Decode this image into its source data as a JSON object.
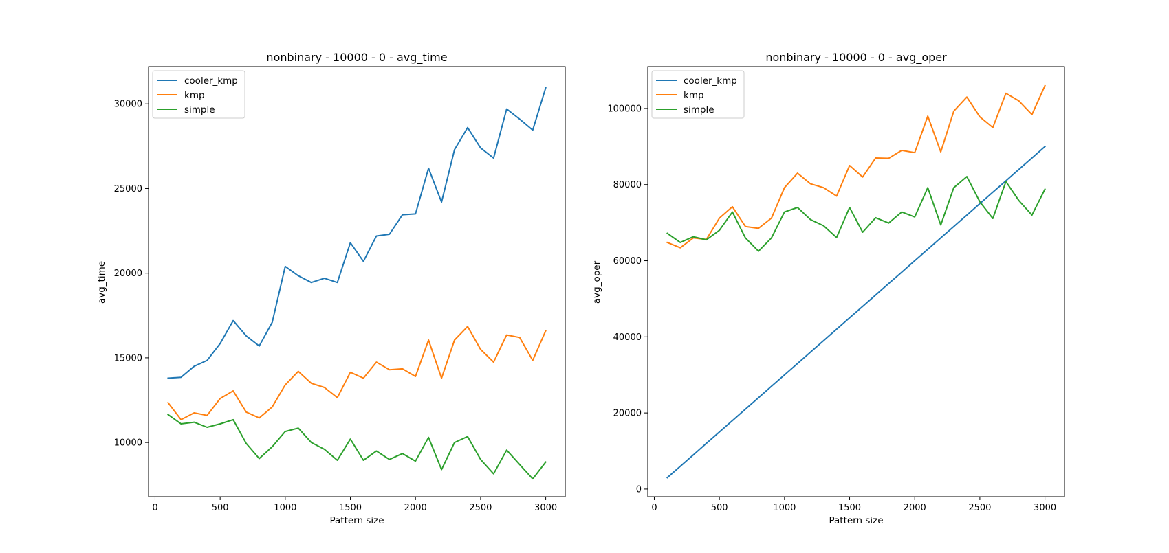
{
  "chart_data": [
    {
      "type": "line",
      "title": "nonbinary - 10000 - 0 - avg_time",
      "xlabel": "Pattern size",
      "ylabel": "avg_time",
      "xlim": [
        -50,
        3150
      ],
      "ylim": [
        6800,
        32200
      ],
      "xticks": [
        0,
        500,
        1000,
        1500,
        2000,
        2500,
        3000
      ],
      "yticks": [
        10000,
        15000,
        20000,
        25000,
        30000
      ],
      "grid": false,
      "legend": "upper left",
      "x": [
        100,
        200,
        300,
        400,
        500,
        600,
        700,
        800,
        900,
        1000,
        1100,
        1200,
        1300,
        1400,
        1500,
        1600,
        1700,
        1800,
        1900,
        2000,
        2100,
        2200,
        2300,
        2400,
        2500,
        2600,
        2700,
        2800,
        2900,
        3000
      ],
      "series": [
        {
          "name": "cooler_kmp",
          "color": "#1f77b4",
          "values": [
            13800,
            13850,
            14500,
            14850,
            15850,
            17200,
            16300,
            15700,
            17100,
            20400,
            19850,
            19450,
            19700,
            19450,
            21800,
            20700,
            22200,
            22300,
            23450,
            23500,
            26200,
            24200,
            27300,
            28600,
            27400,
            26800,
            29700,
            29100,
            28450,
            30950
          ]
        },
        {
          "name": "kmp",
          "color": "#ff7f0e",
          "values": [
            12350,
            11350,
            11750,
            11600,
            12600,
            13050,
            11800,
            11450,
            12100,
            13400,
            14200,
            13500,
            13250,
            12650,
            14150,
            13800,
            14750,
            14300,
            14350,
            13900,
            16050,
            13800,
            16050,
            16850,
            15500,
            14750,
            16350,
            16200,
            14850,
            16600
          ]
        },
        {
          "name": "simple",
          "color": "#2ca02c",
          "values": [
            11650,
            11100,
            11200,
            10900,
            11100,
            11350,
            9950,
            9050,
            9750,
            10650,
            10850,
            10000,
            9600,
            8950,
            10200,
            8950,
            9500,
            9000,
            9350,
            8900,
            10300,
            8400,
            10000,
            10350,
            9000,
            8150,
            9550,
            8700,
            7850,
            8850
          ]
        }
      ]
    },
    {
      "type": "line",
      "title": "nonbinary - 10000 - 0 - avg_oper",
      "xlabel": "Pattern size",
      "ylabel": "avg_oper",
      "xlim": [
        -50,
        3150
      ],
      "ylim": [
        -2000,
        111000
      ],
      "xticks": [
        0,
        500,
        1000,
        1500,
        2000,
        2500,
        3000
      ],
      "yticks": [
        0,
        20000,
        40000,
        60000,
        80000,
        100000
      ],
      "grid": false,
      "legend": "upper left",
      "x": [
        100,
        200,
        300,
        400,
        500,
        600,
        700,
        800,
        900,
        1000,
        1100,
        1200,
        1300,
        1400,
        1500,
        1600,
        1700,
        1800,
        1900,
        2000,
        2100,
        2200,
        2300,
        2400,
        2500,
        2600,
        2700,
        2800,
        2900,
        3000
      ],
      "series": [
        {
          "name": "cooler_kmp",
          "color": "#1f77b4",
          "values": [
            3000,
            6000,
            9000,
            12000,
            15000,
            18000,
            21000,
            24000,
            27000,
            30000,
            33000,
            36000,
            39000,
            42000,
            45000,
            48000,
            51000,
            54000,
            57000,
            60000,
            63000,
            66000,
            69000,
            72000,
            75000,
            78000,
            81000,
            84000,
            87000,
            90000
          ]
        },
        {
          "name": "kmp",
          "color": "#ff7f0e",
          "values": [
            64800,
            63400,
            66000,
            65600,
            71200,
            74200,
            69000,
            68500,
            71200,
            79200,
            83000,
            80200,
            79200,
            77000,
            85000,
            82000,
            87000,
            86900,
            89000,
            88400,
            98000,
            88600,
            99300,
            103000,
            97800,
            95000,
            104000,
            102000,
            98400,
            106000
          ]
        },
        {
          "name": "simple",
          "color": "#2ca02c",
          "values": [
            67200,
            64800,
            66300,
            65500,
            68000,
            72800,
            66000,
            62500,
            66000,
            72800,
            74000,
            70800,
            69200,
            66100,
            74000,
            67500,
            71300,
            69900,
            72800,
            71500,
            79200,
            69400,
            79200,
            82100,
            75500,
            71100,
            80800,
            75800,
            72000,
            78800
          ]
        }
      ]
    }
  ]
}
